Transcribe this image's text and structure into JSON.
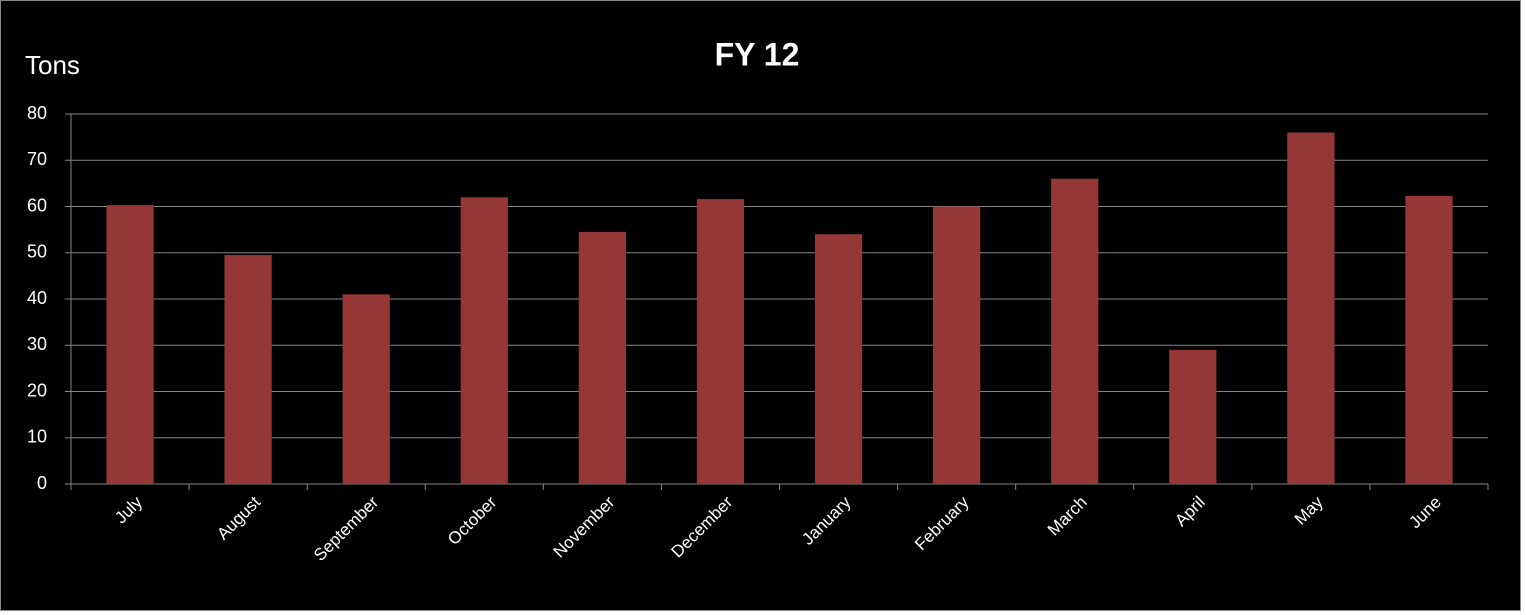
{
  "chart_data": {
    "type": "bar",
    "title": "FY 12",
    "y_label": "Tons",
    "categories": [
      "July",
      "August",
      "September",
      "October",
      "November",
      "December",
      "January",
      "February",
      "March",
      "April",
      "May",
      "June"
    ],
    "values": [
      60.3,
      49.5,
      41,
      62,
      54.5,
      61.6,
      54,
      60,
      66,
      29,
      76,
      62.3
    ],
    "color": "#953735",
    "ylim": [
      0,
      80
    ],
    "yticks": [
      0,
      10,
      20,
      30,
      40,
      50,
      60,
      70,
      80
    ],
    "grid": true
  }
}
